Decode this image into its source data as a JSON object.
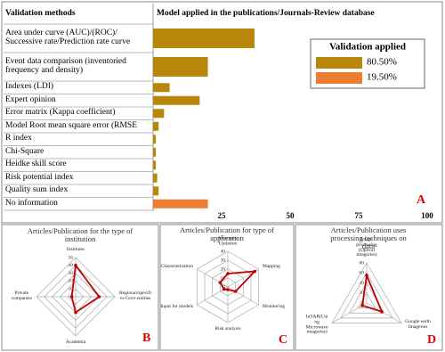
{
  "chart_data": [
    {
      "type": "bar",
      "orientation": "horizontal",
      "category_header": "Validation methods",
      "title": "Model applied in the publications/Journals‐Review database",
      "categories": [
        "Area under curve (AUC)/(ROC)/\nSuccessive rate/Prediction rate curve",
        "Event data comparison (inventoried\nfrequency and density)",
        "Indexes (LDI)",
        "Expert opinion",
        "Error matrix (Kappa coefficient)",
        "Model Root mean square error (RMSE",
        "R index",
        "Chi-Square",
        "Heidke skill score",
        "Risk potential index",
        "Quality sum index",
        "No information"
      ],
      "legend_title": "Validation applied",
      "series": [
        {
          "name": "80.50%",
          "color": "#b8860b",
          "values": [
            37,
            20,
            6,
            17,
            4,
            2,
            1,
            1,
            1,
            1.5,
            2,
            null
          ]
        },
        {
          "name": "19.50%",
          "color": "#ed7d31",
          "values": [
            null,
            null,
            null,
            null,
            null,
            null,
            null,
            null,
            null,
            null,
            null,
            20
          ]
        }
      ],
      "xlim": [
        0,
        100
      ],
      "xticks": [
        25,
        50,
        75,
        100
      ],
      "panel_label": "A"
    },
    {
      "type": "radar",
      "title": "Articles/Publication  for the type of\ninstitution",
      "categories": [
        "Institutes",
        "Regional/specifi\nve Govt entities",
        "Academia",
        "Private\ncompanies"
      ],
      "values": [
        40,
        30,
        20,
        5
      ],
      "color": "#c00000",
      "rlim": [
        0,
        50
      ],
      "rticks": [
        0,
        10,
        20,
        30,
        40,
        50
      ],
      "panel_label": "B"
    },
    {
      "type": "radar",
      "title": "Articles/Publication  for type of\napplication",
      "categories": [
        "Inventory\nUpdation",
        "Mapping",
        "Monitoring",
        "Risk analysis",
        "Input for models",
        "Characterization"
      ],
      "values": [
        15,
        35,
        10,
        3,
        5,
        10
      ],
      "color": "#c00000",
      "rlim": [
        0,
        40
      ],
      "rticks": [
        0,
        10,
        20,
        30,
        40
      ],
      "panel_label": "C"
    },
    {
      "type": "radar",
      "title": "Articles/Publication  uses\nprocessing techniques on data",
      "categories": [
        "Image\nprocessing\n(Optical\nimageries)",
        "Google earth\nImageries",
        "InSAR(Usi\nng\nMicrowave\nimageries)"
      ],
      "values": [
        55,
        35,
        10
      ],
      "color": "#c00000",
      "rlim": [
        0,
        80
      ],
      "rticks": [
        0,
        20,
        40,
        60,
        80
      ],
      "panel_label": "D"
    }
  ]
}
